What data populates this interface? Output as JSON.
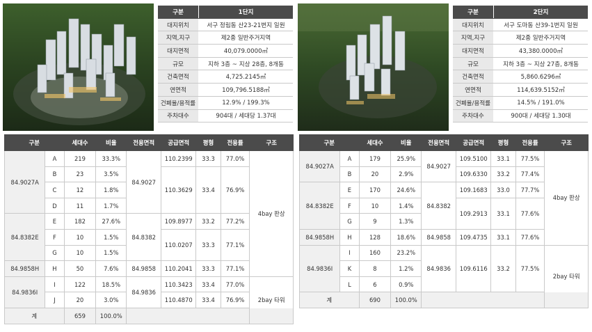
{
  "site1": {
    "info_header": [
      "구분",
      "1단지"
    ],
    "info_rows": [
      [
        "대지위치",
        "서구 정림동 산23-21번지 일원"
      ],
      [
        "지역,지구",
        "제2종 일반주거지역"
      ],
      [
        "대지면적",
        "40,079.0000㎡"
      ],
      [
        "규모",
        "지하 3층 ~ 지상 28층, 8개동"
      ],
      [
        "건축면적",
        "4,725.2145㎡"
      ],
      [
        "연면적",
        "109,796.5188㎡"
      ],
      [
        "건폐율/용적률",
        "12.9% / 199.3%"
      ],
      [
        "주차대수",
        "904대 / 세대당 1.37대"
      ]
    ],
    "unit_headers": [
      "구분",
      "세대수",
      "비율",
      "전용면적",
      "공급면적",
      "평형",
      "전용률",
      "구조"
    ],
    "groups": [
      {
        "name": "84.9027A",
        "cells": [
          "A",
          "B",
          "C",
          "D"
        ],
        "households": [
          "219",
          "23",
          "12",
          "11"
        ],
        "ratios": [
          "33.3%",
          "3.5%",
          "1.8%",
          "1.7%"
        ],
        "exclusive": "84.9027",
        "supply": [
          {
            "area": "110.2399",
            "pyeong": "33.3",
            "rate": "77.0%",
            "span": 1
          },
          {
            "area": "110.3629",
            "pyeong": "33.4",
            "rate": "76.9%",
            "span": 3
          }
        ]
      },
      {
        "name": "84.8382E",
        "cells": [
          "E",
          "F",
          "G"
        ],
        "households": [
          "182",
          "10",
          "10"
        ],
        "ratios": [
          "27.6%",
          "1.5%",
          "1.5%"
        ],
        "exclusive": "84.8382",
        "supply": [
          {
            "area": "109.8977",
            "pyeong": "33.2",
            "rate": "77.2%",
            "span": 1
          },
          {
            "area": "110.0207",
            "pyeong": "33.3",
            "rate": "77.1%",
            "span": 2
          }
        ]
      },
      {
        "name": "84.9858H",
        "cells": [
          "H"
        ],
        "households": [
          "50"
        ],
        "ratios": [
          "7.6%"
        ],
        "exclusive": "84.9858",
        "supply": [
          {
            "area": "110.2041",
            "pyeong": "33.3",
            "rate": "77.1%",
            "span": 1
          }
        ]
      },
      {
        "name": "84.9836I",
        "cells": [
          "I",
          "J"
        ],
        "households": [
          "122",
          "20"
        ],
        "ratios": [
          "18.5%",
          "3.0%"
        ],
        "exclusive": "84.9836",
        "supply": [
          {
            "area": "110.3423",
            "pyeong": "33.4",
            "rate": "77.0%",
            "span": 1
          },
          {
            "area": "110.4870",
            "pyeong": "33.4",
            "rate": "76.9%",
            "span": 1
          }
        ]
      }
    ],
    "structures": [
      {
        "label": "4bay 판상",
        "rows": 8
      },
      {
        "label": "2bay 타워",
        "rows": 3
      }
    ],
    "total": {
      "label": "계",
      "households": "659",
      "ratio": "100.0%"
    }
  },
  "site2": {
    "info_header": [
      "구분",
      "2단지"
    ],
    "info_rows": [
      [
        "대지위치",
        "서구 도마동 산39-1번지 일원"
      ],
      [
        "지역,지구",
        "제2종 일반주거지역"
      ],
      [
        "대지면적",
        "43,380.0000㎡"
      ],
      [
        "규모",
        "지하 3층 ~ 지상 27층, 8개동"
      ],
      [
        "건축면적",
        "5,860.6296㎡"
      ],
      [
        "연면적",
        "114,639.5152㎡"
      ],
      [
        "건폐율/용적률",
        "14.5% / 191.0%"
      ],
      [
        "주차대수",
        "900대 / 세대당 1.30대"
      ]
    ],
    "unit_headers": [
      "구분",
      "세대수",
      "비율",
      "전용면적",
      "공급면적",
      "평형",
      "전용률",
      "구조"
    ],
    "groups": [
      {
        "name": "84.9027A",
        "cells": [
          "A",
          "B"
        ],
        "households": [
          "179",
          "20"
        ],
        "ratios": [
          "25.9%",
          "2.9%"
        ],
        "exclusive": "84.9027",
        "supply": [
          {
            "area": "109.5100",
            "pyeong": "33.1",
            "rate": "77.5%",
            "span": 1
          },
          {
            "area": "109.6330",
            "pyeong": "33.2",
            "rate": "77.4%",
            "span": 1
          }
        ]
      },
      {
        "name": "84.8382E",
        "cells": [
          "E",
          "F",
          "G"
        ],
        "households": [
          "170",
          "10",
          "9"
        ],
        "ratios": [
          "24.6%",
          "1.4%",
          "1.3%"
        ],
        "exclusive": "84.8382",
        "supply": [
          {
            "area": "109.1683",
            "pyeong": "33.0",
            "rate": "77.7%",
            "span": 1
          },
          {
            "area": "109.2913",
            "pyeong": "33.1",
            "rate": "77.6%",
            "span": 2
          }
        ]
      },
      {
        "name": "84.9858H",
        "cells": [
          "H"
        ],
        "households": [
          "128"
        ],
        "ratios": [
          "18.6%"
        ],
        "exclusive": "84.9858",
        "supply": [
          {
            "area": "109.4735",
            "pyeong": "33.1",
            "rate": "77.6%",
            "span": 1
          }
        ]
      },
      {
        "name": "84.9836I",
        "cells": [
          "I",
          "K",
          "L"
        ],
        "households": [
          "160",
          "8",
          "6"
        ],
        "ratios": [
          "23.2%",
          "1.2%",
          "0.9%"
        ],
        "exclusive": "84.9836",
        "supply": [
          {
            "area": "109.6116",
            "pyeong": "33.2",
            "rate": "77.5%",
            "span": 3
          }
        ]
      }
    ],
    "structures": [
      {
        "label": "4bay 판상",
        "rows": 6
      },
      {
        "label": "2bay 타워",
        "rows": 4
      }
    ],
    "total": {
      "label": "계",
      "households": "690",
      "ratio": "100.0%"
    }
  }
}
